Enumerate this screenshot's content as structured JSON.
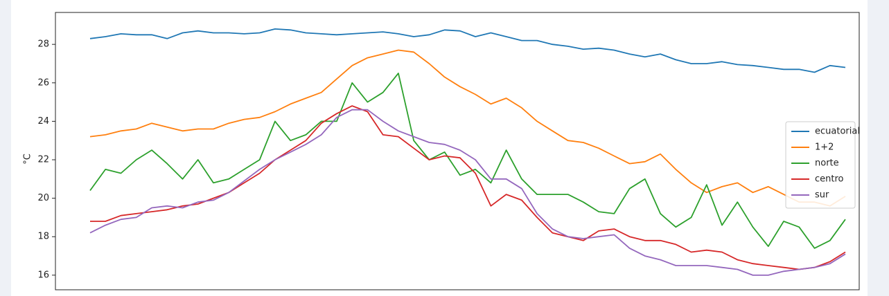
{
  "chart_data": {
    "type": "line",
    "y_label": "°C",
    "categories": [
      null,
      null,
      null,
      null,
      null,
      null,
      null,
      null,
      null,
      null,
      null,
      null,
      null,
      null,
      null,
      null,
      null,
      null,
      null,
      null,
      null,
      null,
      null,
      null,
      null,
      null,
      null,
      null,
      null,
      null,
      null,
      null,
      null,
      null,
      null,
      null,
      null,
      null,
      null,
      null,
      null,
      null,
      null,
      null,
      null,
      null,
      null,
      null,
      null,
      null
    ],
    "ylim": [
      15.24,
      29.66
    ],
    "yticks": [
      16,
      18,
      20,
      22,
      24,
      26,
      28
    ],
    "grid": false,
    "legend": "center right",
    "series": [
      {
        "name": "ecuatorial",
        "color": "#1f77b4",
        "values": [
          28.3,
          28.4,
          28.55,
          28.5,
          28.5,
          28.3,
          28.6,
          28.7,
          28.6,
          28.6,
          28.55,
          28.6,
          28.8,
          28.75,
          28.6,
          28.55,
          28.5,
          28.55,
          28.6,
          28.65,
          28.55,
          28.4,
          28.5,
          28.75,
          28.7,
          28.4,
          28.6,
          28.4,
          28.2,
          28.2,
          28.0,
          27.9,
          27.75,
          27.8,
          27.7,
          27.5,
          27.35,
          27.5,
          27.2,
          27.0,
          27.0,
          27.1,
          26.95,
          26.9,
          26.8,
          26.7,
          26.7,
          26.55,
          26.9,
          26.8
        ]
      },
      {
        "name": "1+2",
        "color": "#ff7f0e",
        "values": [
          23.2,
          23.3,
          23.5,
          23.6,
          23.9,
          23.7,
          23.5,
          23.6,
          23.6,
          23.9,
          24.1,
          24.2,
          24.5,
          24.9,
          25.2,
          25.5,
          26.2,
          26.9,
          27.3,
          27.5,
          27.7,
          27.6,
          27.0,
          26.3,
          25.8,
          25.4,
          24.9,
          25.2,
          24.7,
          24.0,
          23.5,
          23.0,
          22.9,
          22.6,
          22.2,
          21.8,
          21.9,
          22.3,
          21.5,
          20.8,
          20.3,
          20.6,
          20.8,
          20.3,
          20.6,
          20.2,
          19.8,
          19.8,
          19.6,
          20.1
        ]
      },
      {
        "name": "norte",
        "color": "#2ca02c",
        "values": [
          20.4,
          21.5,
          21.3,
          22.0,
          22.5,
          21.8,
          21.0,
          22.0,
          20.8,
          21.0,
          21.5,
          22.0,
          24.0,
          23.0,
          23.3,
          24.0,
          24.0,
          26.0,
          25.0,
          25.5,
          26.5,
          23.0,
          22.0,
          22.4,
          21.2,
          21.5,
          20.8,
          22.5,
          21.0,
          20.2,
          20.2,
          20.2,
          19.8,
          19.3,
          19.2,
          20.5,
          21.0,
          19.2,
          18.5,
          19.0,
          20.7,
          18.6,
          19.8,
          18.5,
          17.5,
          18.8,
          18.5,
          17.4,
          17.8,
          18.9
        ]
      },
      {
        "name": "centro",
        "color": "#d62728",
        "values": [
          18.8,
          18.8,
          19.1,
          19.2,
          19.3,
          19.4,
          19.6,
          19.7,
          20.0,
          20.3,
          20.8,
          21.3,
          22.0,
          22.5,
          23.0,
          23.9,
          24.4,
          24.8,
          24.5,
          23.3,
          23.2,
          22.6,
          22.0,
          22.2,
          22.1,
          21.3,
          19.6,
          20.2,
          19.9,
          19.0,
          18.2,
          18.0,
          17.8,
          18.3,
          18.4,
          18.0,
          17.8,
          17.8,
          17.6,
          17.2,
          17.3,
          17.2,
          16.8,
          16.6,
          16.5,
          16.4,
          16.3,
          16.4,
          16.7,
          17.2
        ]
      },
      {
        "name": "sur",
        "color": "#9467bd",
        "values": [
          18.2,
          18.6,
          18.9,
          19.0,
          19.5,
          19.6,
          19.5,
          19.8,
          19.9,
          20.3,
          20.9,
          21.5,
          22.0,
          22.4,
          22.8,
          23.3,
          24.2,
          24.6,
          24.6,
          24.0,
          23.5,
          23.2,
          22.9,
          22.8,
          22.5,
          22.0,
          21.0,
          21.0,
          20.5,
          19.2,
          18.4,
          18.0,
          17.9,
          18.0,
          18.1,
          17.4,
          17.0,
          16.8,
          16.5,
          16.5,
          16.5,
          16.4,
          16.3,
          16.0,
          16.0,
          16.2,
          16.3,
          16.4,
          16.6,
          17.1
        ]
      }
    ]
  }
}
